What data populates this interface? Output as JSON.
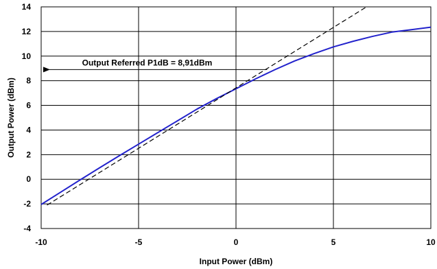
{
  "chart_data": {
    "type": "line",
    "xlabel": "Input Power (dBm)",
    "ylabel": "Output Power (dBm)",
    "xlim": [
      -10,
      10
    ],
    "ylim": [
      -4,
      14
    ],
    "xticks": [
      -10,
      -5,
      0,
      5,
      10
    ],
    "yticks": [
      -4,
      -2,
      0,
      2,
      4,
      6,
      8,
      10,
      12,
      14
    ],
    "xtick_labels": [
      "-10",
      "-5",
      "0",
      "5",
      "10"
    ],
    "ytick_labels": [
      "-4",
      "-2",
      "0",
      "2",
      "4",
      "6",
      "8",
      "10",
      "12",
      "14"
    ],
    "grid": true,
    "series": [
      {
        "style": "solid",
        "color": "#2222cc",
        "x": [
          -10,
          -9,
          -8,
          -7,
          -6,
          -5,
          -4,
          -3,
          -2,
          -1,
          0,
          1,
          2,
          3,
          4,
          5,
          6,
          7,
          8,
          9,
          10
        ],
        "y": [
          -2.05,
          -1.05,
          -0.05,
          0.93,
          1.9,
          2.85,
          3.8,
          4.75,
          5.7,
          6.55,
          7.35,
          8.15,
          8.9,
          9.6,
          10.2,
          10.75,
          11.2,
          11.6,
          11.95,
          12.15,
          12.35
        ]
      },
      {
        "style": "dashed",
        "color": "#000000",
        "x": [
          -9.7,
          6.7
        ],
        "y": [
          -2.1,
          14.0
        ]
      }
    ],
    "annotation": {
      "text": "Output Referred P1dB = 8,91dBm",
      "arrow_from": [
        1.6,
        8.91
      ],
      "arrow_to": [
        -10,
        8.91
      ]
    }
  }
}
